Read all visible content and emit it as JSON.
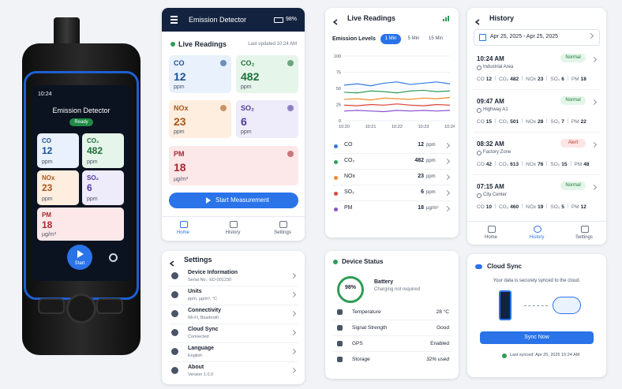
{
  "device": {
    "time": "10:24",
    "title": "Emission Detector",
    "status": "Ready",
    "tiles": [
      {
        "label": "CO",
        "value": 12,
        "unit": "ppm"
      },
      {
        "label": "CO₂",
        "value": 482,
        "unit": "ppm"
      },
      {
        "label": "NOx",
        "value": 23,
        "unit": "ppm"
      },
      {
        "label": "SO₂",
        "value": 6,
        "unit": "ppm"
      },
      {
        "label": "PM",
        "value": 18,
        "unit": "µg/m³"
      }
    ],
    "button": "Start"
  },
  "app": {
    "title": "Emission Detector",
    "battery": "98%",
    "section": "Live Readings",
    "updated": "Last updated 10:24 AM",
    "tiles": [
      {
        "label": "CO",
        "value": 12,
        "unit": "ppm"
      },
      {
        "label": "CO₂",
        "value": 482,
        "unit": "ppm"
      },
      {
        "label": "NOx",
        "value": 23,
        "unit": "ppm"
      },
      {
        "label": "SO₂",
        "value": 6,
        "unit": "ppm"
      },
      {
        "label": "PM",
        "value": 18,
        "unit": "µg/m³"
      }
    ],
    "button": "Start Measurement",
    "nav": [
      "Home",
      "History",
      "Settings"
    ]
  },
  "live": {
    "title": "Live Readings",
    "tabs": [
      "1 Min",
      "5 Min",
      "15 Min"
    ],
    "chart_data": {
      "type": "line",
      "title": "Emission Levels",
      "x": [
        "10:20",
        null,
        "10:21",
        null,
        "10:22",
        null,
        "10:23",
        null,
        "10:24"
      ],
      "ylim": [
        0,
        100
      ],
      "yticks": [
        0,
        25,
        50,
        75,
        100
      ],
      "grid": true,
      "series": [
        {
          "color": "#2f7be6",
          "values": [
            55,
            57,
            54,
            58,
            60,
            56,
            58,
            60,
            57
          ]
        },
        {
          "color": "#2e9d57",
          "values": [
            44,
            43,
            46,
            45,
            43,
            46,
            47,
            45,
            46
          ]
        },
        {
          "color": "#f08a24",
          "values": [
            33,
            34,
            32,
            35,
            34,
            33,
            35,
            34,
            36
          ]
        },
        {
          "color": "#e0453a",
          "values": [
            24,
            23,
            25,
            24,
            26,
            24,
            23,
            25,
            24
          ]
        },
        {
          "color": "#8a4fd0",
          "values": [
            15,
            16,
            15,
            14,
            16,
            15,
            16,
            15,
            16
          ]
        }
      ]
    },
    "list": [
      {
        "label": "CO",
        "value": 12,
        "unit": "ppm"
      },
      {
        "label": "CO₂",
        "value": 482,
        "unit": "ppm"
      },
      {
        "label": "NOx",
        "value": 23,
        "unit": "ppm"
      },
      {
        "label": "SO₂",
        "value": 6,
        "unit": "ppm"
      },
      {
        "label": "PM",
        "value": 18,
        "unit": "µg/m³"
      }
    ]
  },
  "history": {
    "title": "History",
    "range": "Apr 25, 2025 - Apr 25, 2025",
    "entries": [
      {
        "time": "10:24 AM",
        "status": "Normal",
        "location": "Industrial Area",
        "readings": [
          {
            "label": "CO",
            "value": 12
          },
          {
            "label": "CO₂",
            "value": 482
          },
          {
            "label": "NOx",
            "value": 23
          },
          {
            "label": "SO₂",
            "value": 6
          },
          {
            "label": "PM",
            "value": 18
          }
        ]
      },
      {
        "time": "09:47 AM",
        "status": "Normal",
        "location": "Highway A1",
        "readings": [
          {
            "label": "CO",
            "value": 15
          },
          {
            "label": "CO₂",
            "value": 501
          },
          {
            "label": "NOx",
            "value": 28
          },
          {
            "label": "SO₂",
            "value": 7
          },
          {
            "label": "PM",
            "value": 22
          }
        ]
      },
      {
        "time": "08:32 AM",
        "status": "Alert",
        "location": "Factory Zone",
        "readings": [
          {
            "label": "CO",
            "value": 42
          },
          {
            "label": "CO₂",
            "value": 613
          },
          {
            "label": "NOx",
            "value": 76
          },
          {
            "label": "SO₂",
            "value": 15
          },
          {
            "label": "PM",
            "value": 48
          }
        ]
      },
      {
        "time": "07:15 AM",
        "status": "Normal",
        "location": "City Center",
        "readings": [
          {
            "label": "CO",
            "value": 10
          },
          {
            "label": "CO₂",
            "value": 460
          },
          {
            "label": "NOx",
            "value": 19
          },
          {
            "label": "SO₂",
            "value": 5
          },
          {
            "label": "PM",
            "value": 12
          }
        ]
      }
    ],
    "nav": [
      "Home",
      "History",
      "Settings"
    ]
  },
  "settings": {
    "title": "Settings",
    "items": [
      {
        "title": "Device Information",
        "detail": "Serial No.: ED-001230"
      },
      {
        "title": "Units",
        "detail": "ppm, µg/m³, °C"
      },
      {
        "title": "Connectivity",
        "detail": "Wi-Fi, Bluetooth"
      },
      {
        "title": "Cloud Sync",
        "detail": "Connected"
      },
      {
        "title": "Language",
        "detail": "English"
      },
      {
        "title": "About",
        "detail": "Version 1.0.0"
      }
    ]
  },
  "status": {
    "title": "Device Status",
    "battery_level": "98%",
    "battery_label": "Battery",
    "battery_note": "Charging not required",
    "rows": [
      {
        "label": "Temperature",
        "value": "28 °C"
      },
      {
        "label": "Signal Strength",
        "value": "Good"
      },
      {
        "label": "GPS",
        "value": "Enabled"
      },
      {
        "label": "Storage",
        "value": "32% used"
      }
    ]
  },
  "cloud": {
    "title": "Cloud Sync",
    "text": "Your data is securely synced to the cloud.",
    "button": "Sync Now",
    "last": "Last synced: Apr 25, 2025 10:24 AM"
  }
}
